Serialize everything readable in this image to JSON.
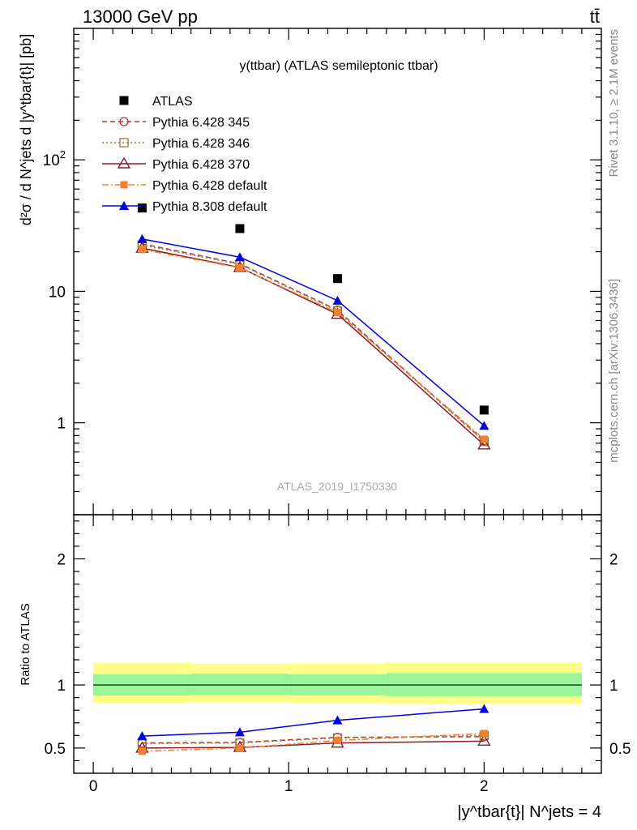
{
  "header": {
    "beam": "13000 GeV pp",
    "process": "tt̄"
  },
  "side_labels": {
    "rivet": "Rivet 3.1.10, ≥ 2.1M events",
    "source": "mcplots.cern.ch [arXiv:1306.3436]"
  },
  "chart_data": [
    {
      "type": "scatter",
      "panel": "main",
      "title": "y(ttbar) (ATLAS semileptonic ttbar)",
      "watermark": "ATLAS_2019_I1750330",
      "ylabel": "d²σ / d N^jets d |y^tbar{t}| [pb]",
      "yscale": "log",
      "ylim": [
        0.2,
        1000
      ],
      "xlim": [
        -0.1,
        2.6
      ],
      "ytick_labels": [
        "1",
        "10",
        "10²"
      ],
      "x": [
        0.25,
        0.75,
        1.25,
        2.0
      ],
      "series": [
        {
          "name": "ATLAS",
          "color": "#000000",
          "marker": "square-filled",
          "line": "none",
          "values": [
            43,
            30,
            12.5,
            1.25
          ]
        },
        {
          "name": "Pythia 6.428 345",
          "color": "#b5363f",
          "marker": "circle-open",
          "line": "dashed",
          "values": [
            23,
            16.2,
            7.2,
            0.73
          ]
        },
        {
          "name": "Pythia 6.428 346",
          "color": "#9b7a3a",
          "marker": "square-open",
          "line": "dotted",
          "values": [
            22.5,
            16.0,
            7.1,
            0.72
          ]
        },
        {
          "name": "Pythia 6.428 370",
          "color": "#8b1a2b",
          "marker": "triangle-open",
          "line": "solid",
          "values": [
            21.3,
            15.2,
            6.7,
            0.68
          ]
        },
        {
          "name": "Pythia 6.428 default",
          "color": "#f08030",
          "marker": "square-filled-small",
          "line": "dashdot",
          "values": [
            20.8,
            15.1,
            6.9,
            0.75
          ]
        },
        {
          "name": "Pythia 8.308 default",
          "color": "#0000dd",
          "marker": "triangle-filled",
          "line": "solid",
          "values": [
            25.0,
            18.2,
            8.5,
            0.95
          ]
        }
      ]
    },
    {
      "type": "scatter",
      "panel": "ratio",
      "ylabel": "Ratio to ATLAS",
      "ylim": [
        0.3,
        2.35
      ],
      "xlim": [
        -0.1,
        2.6
      ],
      "xlabel": "|y^tbar{t}| N^jets = 4",
      "xtick_labels": [
        "0",
        "1",
        "2"
      ],
      "ytick_labels": [
        "0.5",
        "1",
        "2"
      ],
      "x": [
        0.25,
        0.75,
        1.25,
        2.0
      ],
      "band_bins": [
        [
          0.0,
          0.5
        ],
        [
          0.5,
          1.0
        ],
        [
          1.0,
          1.5
        ],
        [
          1.5,
          2.5
        ]
      ],
      "band_stat": [
        [
          0.917,
          1.085
        ],
        [
          0.92,
          1.09
        ],
        [
          0.918,
          1.085
        ],
        [
          0.912,
          1.095
        ]
      ],
      "band_total": [
        [
          0.856,
          1.175
        ],
        [
          0.862,
          1.168
        ],
        [
          0.856,
          1.172
        ],
        [
          0.85,
          1.178
        ]
      ],
      "series": [
        {
          "name": "Pythia 6.428 345",
          "values": [
            0.54,
            0.545,
            0.585,
            0.59
          ]
        },
        {
          "name": "Pythia 6.428 346",
          "values": [
            0.535,
            0.54,
            0.58,
            0.6
          ]
        },
        {
          "name": "Pythia 6.428 370",
          "values": [
            0.5,
            0.505,
            0.54,
            0.555
          ]
        },
        {
          "name": "Pythia 6.428 default",
          "values": [
            0.475,
            0.5,
            0.56,
            0.615
          ]
        },
        {
          "name": "Pythia 8.308 default",
          "values": [
            0.595,
            0.625,
            0.72,
            0.81
          ]
        }
      ]
    }
  ]
}
